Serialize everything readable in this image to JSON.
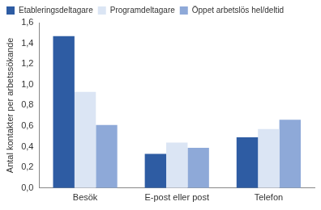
{
  "chart_data": {
    "type": "bar",
    "y_label": "Antal kontakter per arbetssökande",
    "categories": [
      "Besök",
      "E-post eller post",
      "Telefon"
    ],
    "series": [
      {
        "name": "Etableringsdeltagare",
        "color": "#2e5ca3",
        "values": [
          1.47,
          0.33,
          0.49
        ]
      },
      {
        "name": "Programdeltagare",
        "color": "#dbe5f4",
        "values": [
          0.93,
          0.44,
          0.57
        ]
      },
      {
        "name": "Öppet arbetslös hel/deltid",
        "color": "#8ea9d8",
        "values": [
          0.61,
          0.39,
          0.66
        ]
      }
    ],
    "ylim": [
      0,
      1.6
    ],
    "yticks": [
      {
        "value": 0,
        "label": "0,0"
      },
      {
        "value": 0.2,
        "label": "0,2"
      },
      {
        "value": 0.4,
        "label": "0,4"
      },
      {
        "value": 0.6,
        "label": "0,6"
      },
      {
        "value": 0.8,
        "label": "0,8"
      },
      {
        "value": 1.0,
        "label": "1,0"
      },
      {
        "value": 1.2,
        "label": "1,2"
      },
      {
        "value": 1.4,
        "label": "1,4"
      },
      {
        "value": 1.6,
        "label": "1,6"
      }
    ],
    "grid": false,
    "legend": "top"
  }
}
